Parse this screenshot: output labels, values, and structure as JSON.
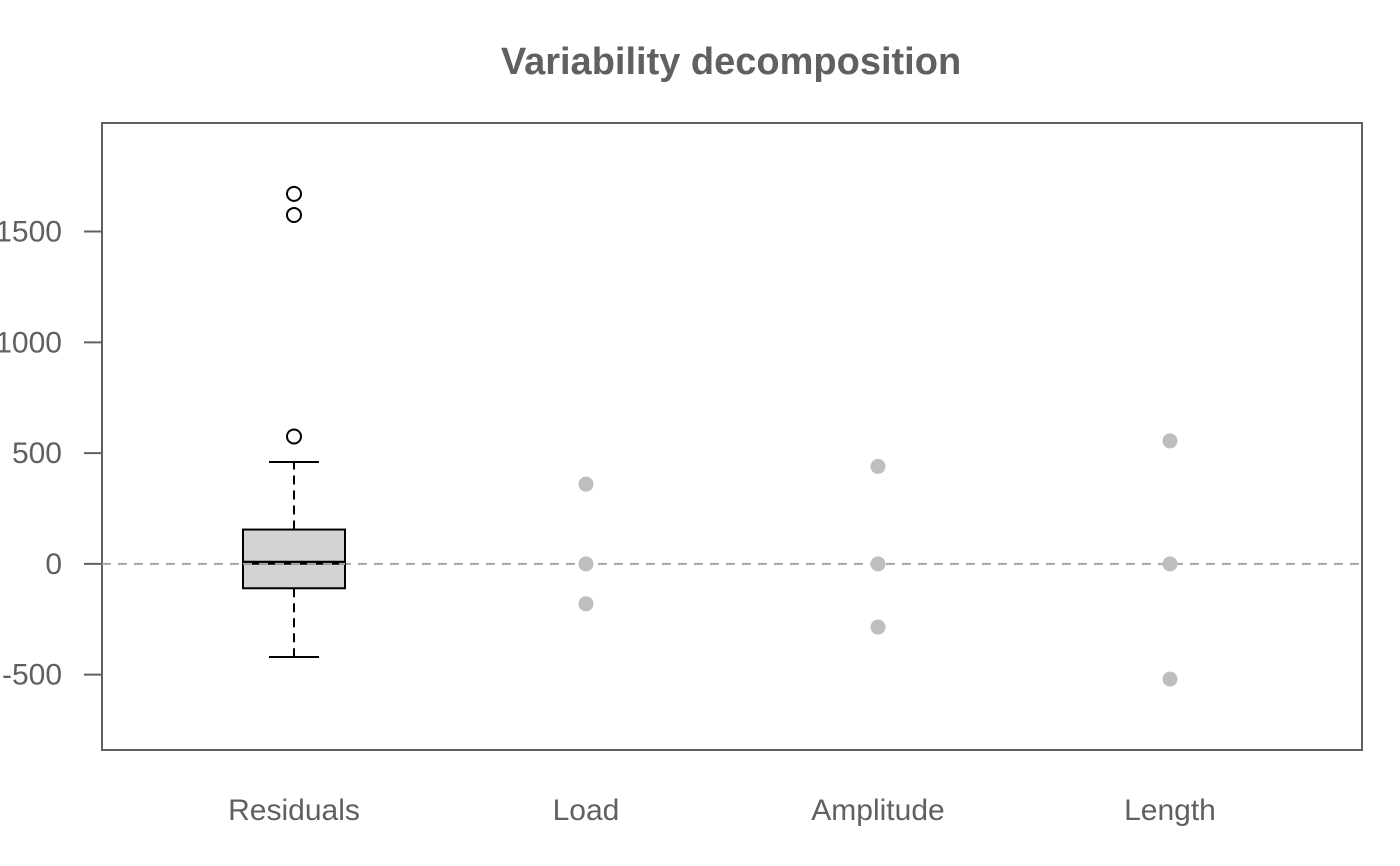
{
  "chart_data": {
    "type": "box",
    "title": "Variability decomposition",
    "xlabel": "",
    "ylabel": "",
    "ylim": [
      -840,
      1990
    ],
    "y_ticks": [
      -500,
      0,
      500,
      1000,
      1500
    ],
    "y_tick_labels": [
      "-500",
      "0",
      "500",
      "1000",
      "1500"
    ],
    "reference_line": {
      "y": 0,
      "style": "dashed",
      "color": "#a6a6a6"
    },
    "grid": false,
    "legend": "none",
    "categories": [
      "Residuals",
      "Load",
      "Amplitude",
      "Length"
    ],
    "boxplot": {
      "category": "Residuals",
      "whisker_low": -420,
      "q1": -110,
      "median": 5,
      "q3": 155,
      "whisker_high": 460,
      "outliers": [
        575,
        1575,
        1670
      ],
      "fill": "#d3d3d3"
    },
    "points": [
      {
        "category": "Load",
        "values": [
          360,
          0,
          -180
        ]
      },
      {
        "category": "Amplitude",
        "values": [
          440,
          0,
          -285
        ]
      },
      {
        "category": "Length",
        "values": [
          555,
          0,
          -520
        ]
      }
    ],
    "point_color": "#bebebe"
  }
}
